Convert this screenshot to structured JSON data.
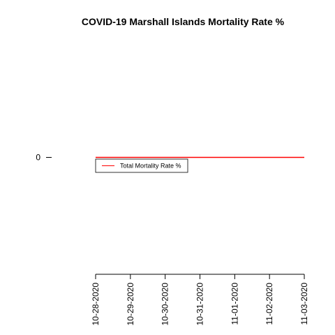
{
  "chart_data": {
    "type": "line",
    "title": "COVID-19 Marshall Islands Mortality Rate %",
    "xlabel": "",
    "ylabel": "",
    "x": [
      "10-28-2020",
      "10-29-2020",
      "10-30-2020",
      "10-31-2020",
      "11-01-2020",
      "11-02-2020",
      "11-03-2020"
    ],
    "x_tick_labels": [
      "10-28-2020",
      "10-29-2020",
      "10-30-2020",
      "10-31-2020",
      "11-01-2020",
      "11-02-2020",
      "11-03-2020"
    ],
    "y_ticks": [
      0
    ],
    "y_tick_labels": [
      "0"
    ],
    "ylim": [
      -1,
      1
    ],
    "series": [
      {
        "name": "Total Mortality Rate %",
        "color": "#ff0000",
        "values": [
          0,
          0,
          0,
          0,
          0,
          0,
          0
        ]
      }
    ],
    "legend_position": "top-left",
    "grid": false
  }
}
